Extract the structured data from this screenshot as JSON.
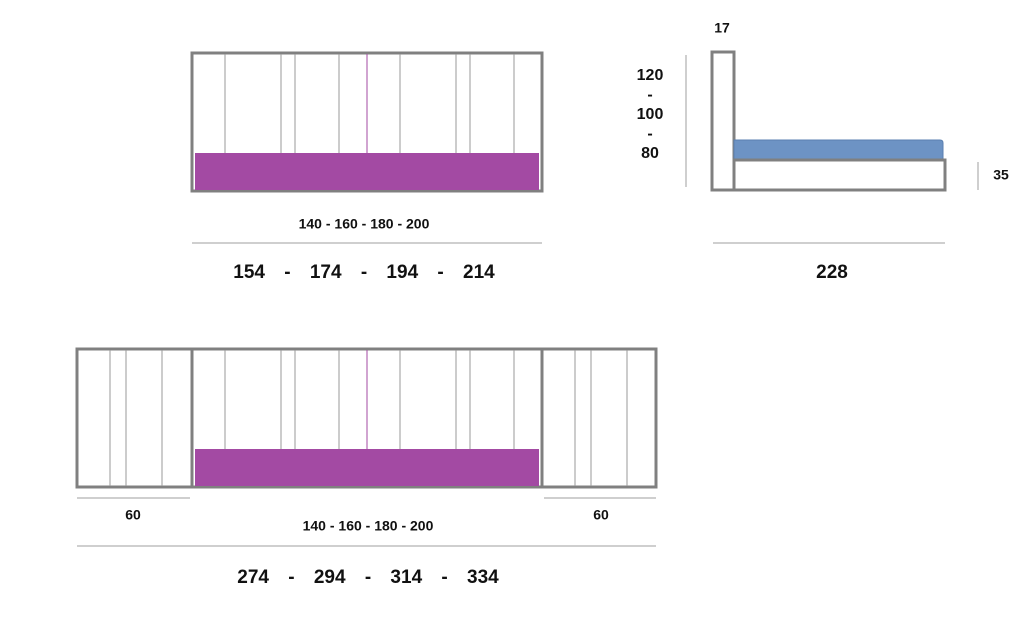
{
  "top_view": {
    "inner_width": "140 - 160 - 180 - 200",
    "outer_width": "154 - 174 - 194 - 214"
  },
  "side_view": {
    "headboard_thickness": "17",
    "headboard_height": [
      "120",
      "-",
      "100",
      "-",
      "80"
    ],
    "base_height": "35",
    "length": "228"
  },
  "bottom_view": {
    "left_nightstand": "60",
    "right_nightstand": "60",
    "inner_width": "140 - 160 - 180 - 200",
    "outer_width": "274 - 294 - 314 - 334"
  }
}
